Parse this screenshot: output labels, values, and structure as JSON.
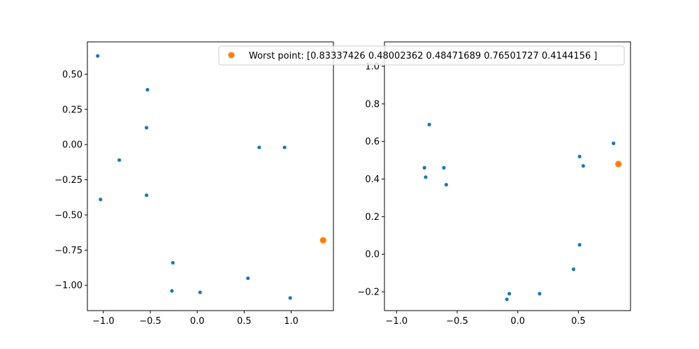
{
  "colors": {
    "points": "#1f77b4",
    "worst": "#ff7f0e",
    "axis": "#000000",
    "legend_border": "#cccccc"
  },
  "legend": {
    "label": "Worst point: [0.83337426 0.48002362 0.48471689 0.76501727 0.4144156 ]",
    "placement": "upper-right of left panel, overflowing into right panel"
  },
  "chart_data": [
    {
      "type": "scatter",
      "title": "",
      "xlabel": "",
      "ylabel": "",
      "xlim": [
        -1.17,
        1.45
      ],
      "ylim": [
        -1.18,
        0.73
      ],
      "xticks": [
        -1.0,
        -0.5,
        0.0,
        0.5,
        1.0
      ],
      "xtick_labels": [
        "−1.0",
        "−0.5",
        "0.0",
        "0.5",
        "1.0"
      ],
      "yticks": [
        -1.0,
        -0.75,
        -0.5,
        -0.25,
        0.0,
        0.25,
        0.5
      ],
      "ytick_labels": [
        "−1.00",
        "−0.75",
        "−0.50",
        "−0.25",
        "0.00",
        "0.25",
        "0.50"
      ],
      "grid": false,
      "series": [
        {
          "role": "points",
          "x": [
            -1.06,
            -0.53,
            -0.54,
            -0.83,
            -1.03,
            -0.54,
            0.66,
            0.93,
            -0.26,
            -0.27,
            0.03,
            0.54,
            0.99
          ],
          "y": [
            0.63,
            0.39,
            0.12,
            -0.11,
            -0.39,
            -0.36,
            -0.02,
            -0.02,
            -0.84,
            -1.04,
            -1.05,
            -0.95,
            -1.09
          ]
        },
        {
          "role": "worst",
          "name": "Worst point: [0.83337426 0.48002362 0.48471689 0.76501727 0.4144156 ]",
          "x": [
            1.34
          ],
          "y": [
            -0.68
          ]
        }
      ]
    },
    {
      "type": "scatter",
      "title": "",
      "xlabel": "",
      "ylabel": "",
      "xlim": [
        -1.1,
        0.93
      ],
      "ylim": [
        -0.3,
        1.13
      ],
      "xticks": [
        -1.0,
        -0.5,
        0.0,
        0.5
      ],
      "xtick_labels": [
        "−1.0",
        "−0.5",
        "0.0",
        "0.5"
      ],
      "yticks": [
        -0.2,
        0.0,
        0.2,
        0.4,
        0.6,
        0.8,
        1.0
      ],
      "ytick_labels": [
        "−0.2",
        "0.0",
        "0.2",
        "0.4",
        "0.6",
        "0.8",
        "1.0"
      ],
      "grid": false,
      "series": [
        {
          "role": "points",
          "x": [
            -0.73,
            -0.77,
            -0.76,
            -0.61,
            -0.59,
            0.51,
            0.54,
            0.79,
            0.51,
            0.46,
            -0.07,
            -0.09,
            0.18
          ],
          "y": [
            0.69,
            0.46,
            0.41,
            0.46,
            0.37,
            0.52,
            0.47,
            0.59,
            0.05,
            -0.08,
            -0.21,
            -0.24,
            -0.21
          ]
        },
        {
          "role": "worst",
          "name": "Worst point: [0.83337426 0.48002362 0.48471689 0.76501727 0.4144156 ]",
          "x": [
            0.83
          ],
          "y": [
            0.48
          ]
        }
      ]
    }
  ]
}
